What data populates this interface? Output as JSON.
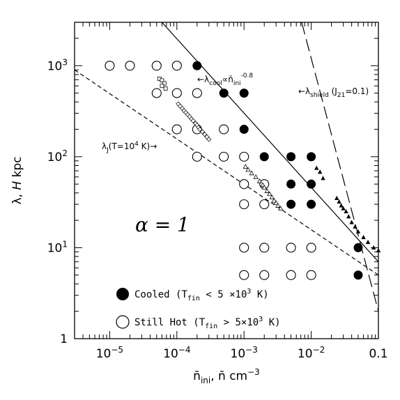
{
  "chart_data": {
    "type": "scatter",
    "title": "",
    "xlabel": "n̄ini, n̄ cm⁻³",
    "ylabel": "λ, H kpc",
    "xscale": "log",
    "yscale": "log",
    "xlim": [
      3e-06,
      0.1
    ],
    "ylim": [
      1,
      3000
    ],
    "x_tick_values": [
      1e-05,
      0.0001,
      0.001,
      0.01,
      0.1
    ],
    "x_tick_labels": [
      "10⁻⁵",
      "10⁻⁴",
      "10⁻³",
      "10⁻²",
      "0.1"
    ],
    "y_tick_values": [
      1,
      10,
      100,
      1000
    ],
    "y_tick_labels": [
      "1",
      "10¹",
      "10²",
      "10³"
    ],
    "annotation_alpha": "α = 1",
    "legend": {
      "placement": "bottom-left",
      "items": [
        {
          "marker": "filled-circle",
          "label": "Cooled (Tfin < 5 ×10³ K)"
        },
        {
          "marker": "open-circle",
          "label": "Still Hot (Tfin > 5×10³ K)"
        }
      ]
    },
    "series": [
      {
        "name": "Cooled (Tfin < 5 ×10³ K)",
        "marker": "filled-circle",
        "points": [
          [
            0.0002,
            1000
          ],
          [
            0.0005,
            500
          ],
          [
            0.001,
            500
          ],
          [
            0.001,
            200
          ],
          [
            0.002,
            100
          ],
          [
            0.005,
            100
          ],
          [
            0.01,
            100
          ],
          [
            0.005,
            50
          ],
          [
            0.01,
            50
          ],
          [
            0.005,
            30
          ],
          [
            0.01,
            30
          ],
          [
            0.05,
            10
          ],
          [
            0.05,
            5
          ]
        ]
      },
      {
        "name": "Still Hot (Tfin > 5×10³ K)",
        "marker": "open-circle",
        "points": [
          [
            1e-05,
            1000
          ],
          [
            2e-05,
            1000
          ],
          [
            5e-05,
            1000
          ],
          [
            0.0001,
            1000
          ],
          [
            5e-05,
            500
          ],
          [
            0.0001,
            500
          ],
          [
            0.0002,
            500
          ],
          [
            0.0001,
            200
          ],
          [
            0.0002,
            200
          ],
          [
            0.0005,
            200
          ],
          [
            0.0002,
            100
          ],
          [
            0.0005,
            100
          ],
          [
            0.001,
            100
          ],
          [
            0.001,
            50
          ],
          [
            0.002,
            50
          ],
          [
            0.001,
            30
          ],
          [
            0.002,
            30
          ],
          [
            0.001,
            10
          ],
          [
            0.002,
            10
          ],
          [
            0.005,
            10
          ],
          [
            0.01,
            10
          ],
          [
            0.001,
            5
          ],
          [
            0.002,
            5
          ],
          [
            0.005,
            5
          ],
          [
            0.01,
            5
          ]
        ]
      },
      {
        "marker": "open-square",
        "points": [
          [
            5.5e-05,
            720
          ],
          [
            6e-05,
            690
          ],
          [
            6.5e-05,
            640
          ],
          [
            6e-05,
            600
          ],
          [
            6.8e-05,
            560
          ]
        ]
      },
      {
        "marker": "open-diamond-trail",
        "points": [
          [
            0.000105,
            380
          ],
          [
            0.000112,
            360
          ],
          [
            0.00012,
            340
          ],
          [
            0.000128,
            320
          ],
          [
            0.000136,
            305
          ],
          [
            0.000145,
            290
          ],
          [
            0.000155,
            275
          ],
          [
            0.000165,
            260
          ],
          [
            0.000175,
            248
          ],
          [
            0.00019,
            232
          ],
          [
            0.0002,
            222
          ],
          [
            0.00021,
            210
          ],
          [
            0.00022,
            200
          ],
          [
            0.00024,
            188
          ],
          [
            0.00026,
            176
          ],
          [
            0.00028,
            165
          ],
          [
            0.0003,
            155
          ]
        ]
      },
      {
        "marker": "open-triangle",
        "points": [
          [
            0.00105,
            78
          ],
          [
            0.00115,
            72
          ],
          [
            0.0013,
            66
          ],
          [
            0.0015,
            60
          ],
          [
            0.0017,
            54
          ],
          [
            0.0019,
            49
          ],
          [
            0.002,
            46
          ],
          [
            0.0022,
            42
          ],
          [
            0.0024,
            39
          ],
          [
            0.0026,
            36
          ],
          [
            0.0028,
            33
          ],
          [
            0.003,
            31
          ],
          [
            0.0032,
            29
          ],
          [
            0.0035,
            27
          ]
        ]
      },
      {
        "marker": "filled-triangle",
        "points": [
          [
            0.012,
            75
          ],
          [
            0.0135,
            68
          ],
          [
            0.015,
            58
          ],
          [
            0.024,
            35
          ],
          [
            0.026,
            32
          ],
          [
            0.028,
            29
          ],
          [
            0.03,
            27
          ],
          [
            0.033,
            25
          ],
          [
            0.036,
            22
          ],
          [
            0.04,
            19
          ],
          [
            0.045,
            17
          ],
          [
            0.05,
            15
          ],
          [
            0.06,
            13
          ],
          [
            0.07,
            11.5
          ],
          [
            0.085,
            10
          ],
          [
            0.1,
            9.3
          ]
        ]
      }
    ],
    "lines": [
      {
        "label": "←λcool ∝ n̄ini^-0.8",
        "style": "solid",
        "points": [
          [
            6e-05,
            3000
          ],
          [
            0.1,
            7
          ]
        ]
      },
      {
        "label": "λJ(T=10⁴ K)→",
        "style": "short-dash",
        "points": [
          [
            3e-06,
            900
          ],
          [
            0.1,
            5
          ]
        ]
      },
      {
        "label": "←λshield (J21=0.1)",
        "style": "long-dash",
        "points": [
          [
            0.0072,
            3000
          ],
          [
            0.1,
            2
          ]
        ]
      }
    ]
  }
}
